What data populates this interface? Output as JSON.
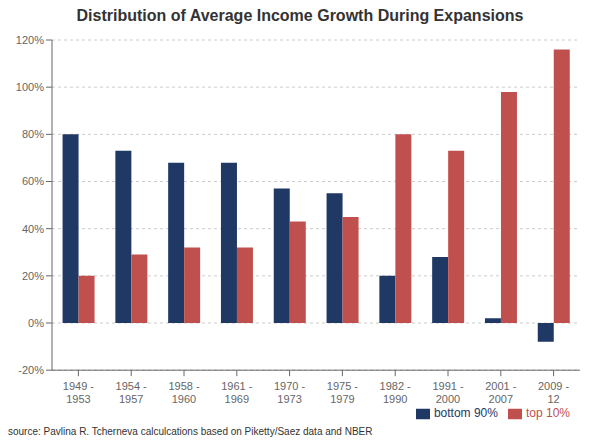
{
  "chart_data": {
    "type": "bar",
    "title": "Distribution of Average Income Growth During Expansions",
    "categories": [
      "1949 -\n1953",
      "1954 -\n1957",
      "1958 -\n1960",
      "1961 -\n1969",
      "1970 -\n1973",
      "1975 -\n1979",
      "1982 -\n1990",
      "1991 -\n2000",
      "2001 -\n2007",
      "2009 -\n12"
    ],
    "series": [
      {
        "name": "bottom 90%",
        "color": "#1F3864",
        "values": [
          80,
          73,
          68,
          68,
          57,
          55,
          20,
          28,
          2,
          -8
        ]
      },
      {
        "name": "top 10%",
        "color": "#C0504D",
        "values": [
          20,
          29,
          32,
          32,
          43,
          45,
          80,
          73,
          98,
          116
        ]
      }
    ],
    "ylim": [
      -20,
      120
    ],
    "yticks": [
      {
        "value": -20,
        "label": "-20%"
      },
      {
        "value": 0,
        "label": "0%"
      },
      {
        "value": 20,
        "label": "20%"
      },
      {
        "value": 40,
        "label": "40%"
      },
      {
        "value": 60,
        "label": "60%"
      },
      {
        "value": 80,
        "label": "80%"
      },
      {
        "value": 100,
        "label": "100%"
      },
      {
        "value": 120,
        "label": "120%"
      }
    ],
    "grid": true,
    "legend": "lower right",
    "annotations": [
      "source: Pavlina R. Tcherneva calculcations based on Piketty/Saez data and NBER"
    ]
  }
}
